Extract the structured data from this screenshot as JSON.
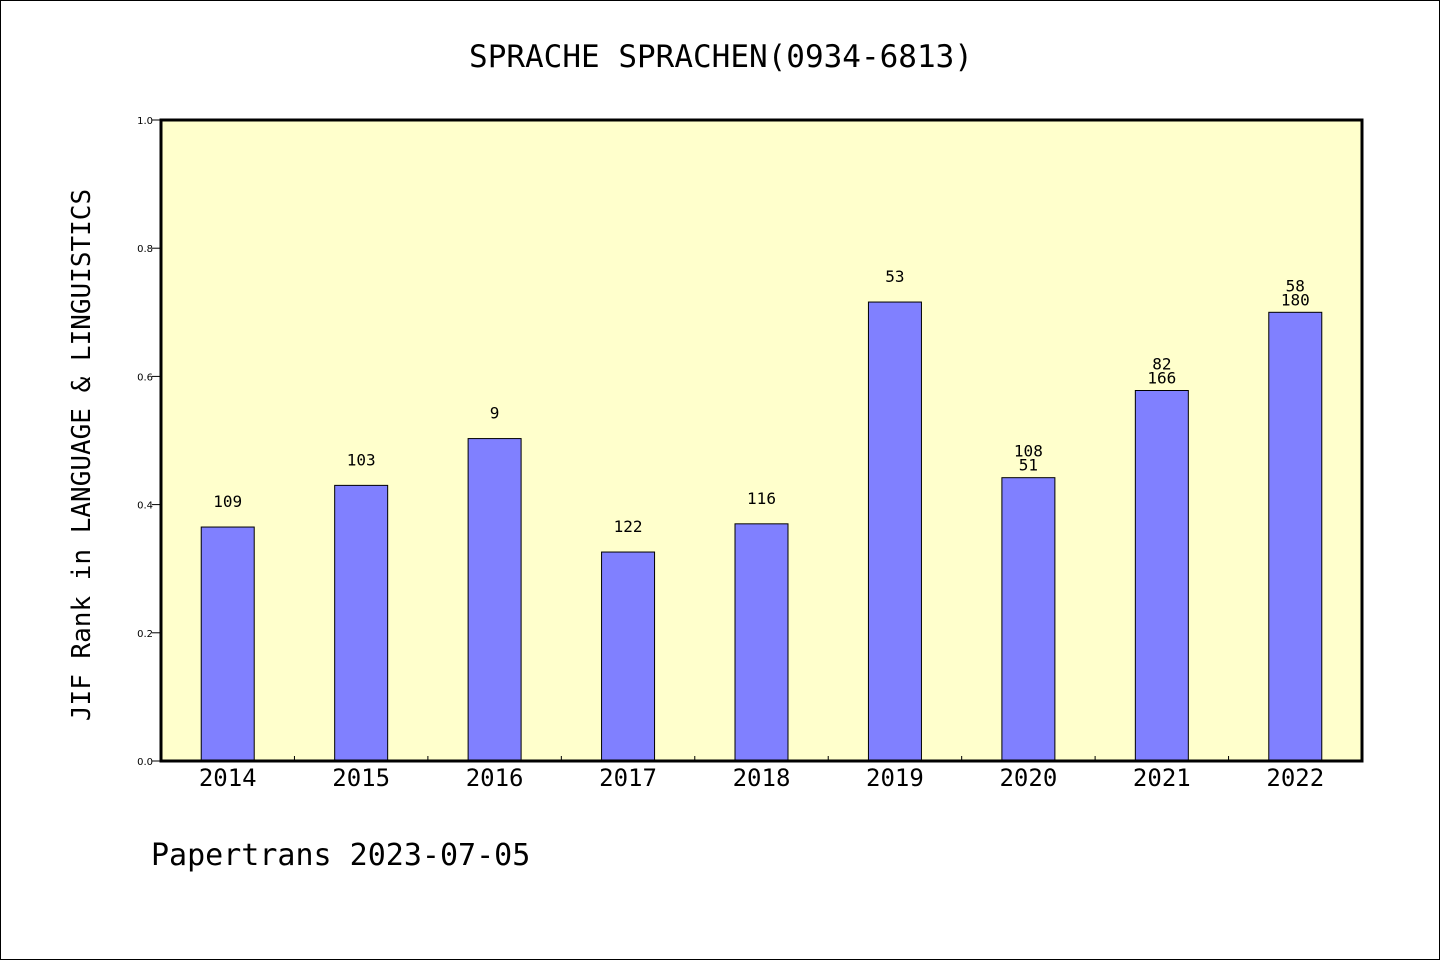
{
  "chart_data": {
    "type": "bar",
    "title": "SPRACHE SPRACHEN(0934-6813)",
    "xlabel": "",
    "ylabel": "JIF Rank in LANGUAGE & LINGUISTICS",
    "ylim": [
      0,
      1.0
    ],
    "yticks": [
      "0.0",
      "0.2",
      "0.4",
      "0.6",
      "0.8",
      "1.0"
    ],
    "categories": [
      "2014",
      "2015",
      "2016",
      "2017",
      "2018",
      "2019",
      "2020",
      "2021",
      "2022"
    ],
    "values": [
      0.365,
      0.43,
      0.503,
      0.326,
      0.37,
      0.716,
      0.442,
      0.578,
      0.7
    ],
    "labels": [
      [
        "109"
      ],
      [
        "103"
      ],
      [
        "9"
      ],
      [
        "122"
      ],
      [
        "116"
      ],
      [
        "53"
      ],
      [
        "108",
        "51"
      ],
      [
        "82",
        "166"
      ],
      [
        "58",
        "180"
      ]
    ],
    "grid": false,
    "colors": {
      "plot_bg": "#ffffcc",
      "bar": "#8080ff",
      "bar_edge": "#000000"
    }
  },
  "footer": "Papertrans 2023-07-05"
}
